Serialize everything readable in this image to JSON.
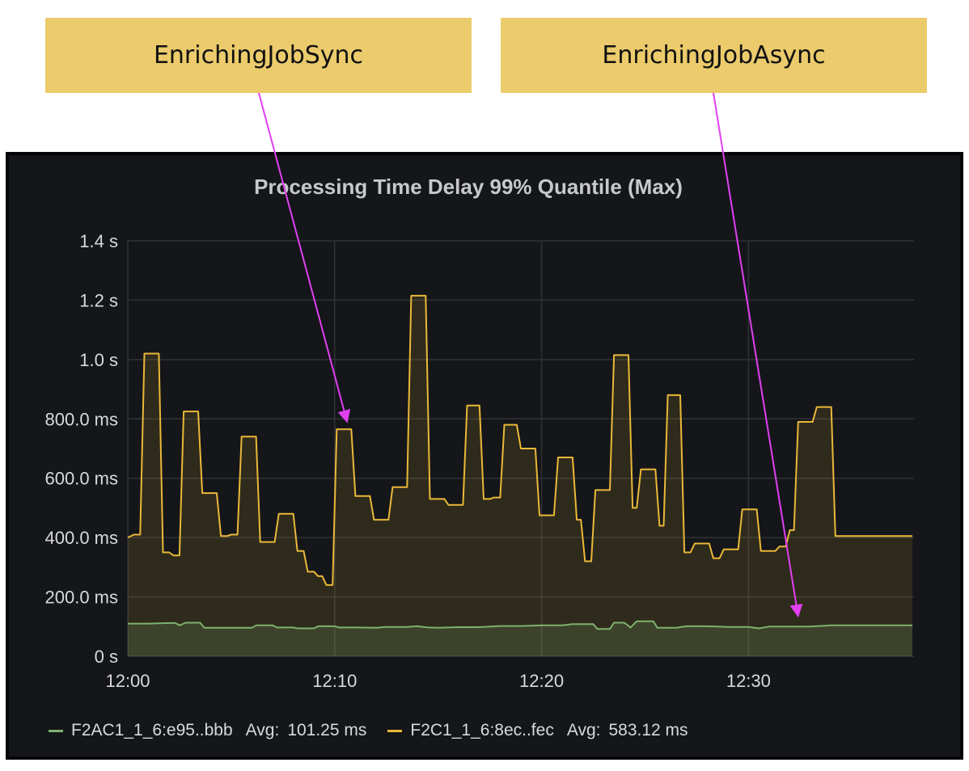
{
  "annotations": {
    "sync_label": "EnrichingJobSync",
    "async_label": "EnrichingJobAsync",
    "arrow_color": "#e040f0"
  },
  "chart_data": {
    "type": "line",
    "title": "Processing Time Delay 99% Quantile (Max)",
    "xlabel": "",
    "ylabel": "",
    "ylim": [
      0,
      1400
    ],
    "yticks": [
      {
        "value": 0,
        "label": "0 s"
      },
      {
        "value": 200,
        "label": "200.0 ms"
      },
      {
        "value": 400,
        "label": "400.0 ms"
      },
      {
        "value": 600,
        "label": "600.0 ms"
      },
      {
        "value": 800,
        "label": "800.0 ms"
      },
      {
        "value": 1000,
        "label": "1.0 s"
      },
      {
        "value": 1200,
        "label": "1.2 s"
      },
      {
        "value": 1400,
        "label": "1.4 s"
      }
    ],
    "xlim": [
      0,
      38
    ],
    "xticks": [
      {
        "value": 0,
        "label": "12:00"
      },
      {
        "value": 10,
        "label": "12:10"
      },
      {
        "value": 20,
        "label": "12:20"
      },
      {
        "value": 30,
        "label": "12:30"
      }
    ],
    "series": [
      {
        "name": "F2C1_1_6:8ec..fec",
        "avg_label": "Avg:",
        "avg": "583.12 ms",
        "color": "#eab839",
        "points": [
          [
            0,
            400
          ],
          [
            0.3,
            410
          ],
          [
            0.6,
            410
          ],
          [
            0.8,
            1020
          ],
          [
            1.5,
            1020
          ],
          [
            1.7,
            350
          ],
          [
            2.0,
            350
          ],
          [
            2.2,
            340
          ],
          [
            2.5,
            340
          ],
          [
            2.7,
            825
          ],
          [
            3.4,
            825
          ],
          [
            3.6,
            550
          ],
          [
            4.3,
            550
          ],
          [
            4.5,
            405
          ],
          [
            4.8,
            405
          ],
          [
            5.0,
            410
          ],
          [
            5.3,
            410
          ],
          [
            5.5,
            740
          ],
          [
            6.2,
            740
          ],
          [
            6.4,
            385
          ],
          [
            7.1,
            385
          ],
          [
            7.3,
            480
          ],
          [
            8.0,
            480
          ],
          [
            8.2,
            355
          ],
          [
            8.5,
            355
          ],
          [
            8.7,
            285
          ],
          [
            9.0,
            285
          ],
          [
            9.2,
            270
          ],
          [
            9.4,
            270
          ],
          [
            9.6,
            240
          ],
          [
            9.9,
            240
          ],
          [
            10.1,
            765
          ],
          [
            10.8,
            765
          ],
          [
            11.0,
            540
          ],
          [
            11.7,
            540
          ],
          [
            11.9,
            460
          ],
          [
            12.6,
            460
          ],
          [
            12.8,
            570
          ],
          [
            13.5,
            570
          ],
          [
            13.7,
            1215
          ],
          [
            14.4,
            1215
          ],
          [
            14.6,
            530
          ],
          [
            15.3,
            530
          ],
          [
            15.5,
            510
          ],
          [
            16.2,
            510
          ],
          [
            16.4,
            845
          ],
          [
            17.0,
            845
          ],
          [
            17.2,
            530
          ],
          [
            17.5,
            530
          ],
          [
            17.7,
            535
          ],
          [
            18.0,
            535
          ],
          [
            18.2,
            780
          ],
          [
            18.8,
            780
          ],
          [
            19.0,
            700
          ],
          [
            19.7,
            700
          ],
          [
            19.9,
            475
          ],
          [
            20.6,
            475
          ],
          [
            20.8,
            670
          ],
          [
            21.5,
            670
          ],
          [
            21.7,
            460
          ],
          [
            21.9,
            460
          ],
          [
            22.1,
            320
          ],
          [
            22.4,
            320
          ],
          [
            22.6,
            560
          ],
          [
            23.3,
            560
          ],
          [
            23.5,
            1015
          ],
          [
            24.2,
            1015
          ],
          [
            24.4,
            500
          ],
          [
            24.6,
            500
          ],
          [
            24.8,
            630
          ],
          [
            25.5,
            630
          ],
          [
            25.7,
            440
          ],
          [
            25.9,
            440
          ],
          [
            26.1,
            880
          ],
          [
            26.7,
            880
          ],
          [
            26.9,
            350
          ],
          [
            27.2,
            350
          ],
          [
            27.4,
            380
          ],
          [
            28.1,
            380
          ],
          [
            28.3,
            330
          ],
          [
            28.6,
            330
          ],
          [
            28.8,
            360
          ],
          [
            29.5,
            360
          ],
          [
            29.7,
            495
          ],
          [
            30.4,
            495
          ],
          [
            30.6,
            355
          ],
          [
            31.3,
            355
          ],
          [
            31.5,
            370
          ],
          [
            31.8,
            370
          ],
          [
            32.0,
            425
          ],
          [
            32.2,
            425
          ],
          [
            32.4,
            790
          ],
          [
            33.1,
            790
          ],
          [
            33.3,
            840
          ],
          [
            34.0,
            840
          ],
          [
            34.2,
            405
          ],
          [
            34.5,
            405
          ]
        ]
      },
      {
        "name": "F2AC1_1_6:e95..bbb",
        "avg_label": "Avg:",
        "avg": "101.25 ms",
        "color": "#7eb26d",
        "points": [
          [
            0,
            110
          ],
          [
            1,
            110
          ],
          [
            2,
            112
          ],
          [
            2.3,
            112
          ],
          [
            2.5,
            104
          ],
          [
            2.8,
            113
          ],
          [
            3.5,
            113
          ],
          [
            3.7,
            96
          ],
          [
            5.5,
            96
          ],
          [
            6,
            96
          ],
          [
            6.2,
            104
          ],
          [
            7,
            104
          ],
          [
            7.2,
            97
          ],
          [
            8,
            97
          ],
          [
            8.2,
            94
          ],
          [
            9,
            94
          ],
          [
            9.2,
            101
          ],
          [
            10,
            101
          ],
          [
            10.2,
            97
          ],
          [
            11,
            97
          ],
          [
            12,
            96
          ],
          [
            12.5,
            99
          ],
          [
            13.5,
            99
          ],
          [
            14,
            101
          ],
          [
            14.5,
            97
          ],
          [
            15,
            96
          ],
          [
            16,
            98
          ],
          [
            17,
            98
          ],
          [
            18,
            102
          ],
          [
            19,
            102
          ],
          [
            20,
            104
          ],
          [
            21,
            104
          ],
          [
            21.5,
            108
          ],
          [
            22.5,
            108
          ],
          [
            22.7,
            92
          ],
          [
            23.3,
            92
          ],
          [
            23.5,
            113
          ],
          [
            24,
            113
          ],
          [
            24.3,
            97
          ],
          [
            24.6,
            118
          ],
          [
            25.4,
            118
          ],
          [
            25.6,
            96
          ],
          [
            26.5,
            96
          ],
          [
            27,
            101
          ],
          [
            28,
            101
          ],
          [
            29,
            99
          ],
          [
            30,
            99
          ],
          [
            30.5,
            94
          ],
          [
            31,
            100
          ],
          [
            32,
            100
          ],
          [
            33,
            100
          ],
          [
            34,
            104
          ],
          [
            34.5,
            104
          ]
        ]
      }
    ]
  }
}
